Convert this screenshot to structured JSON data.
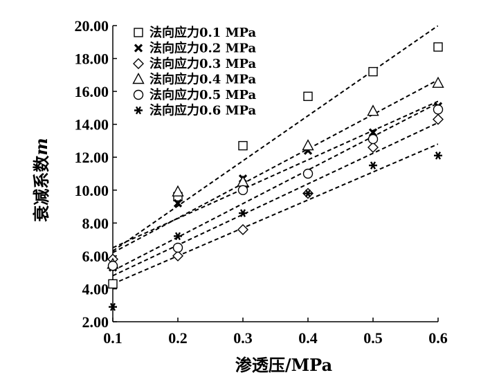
{
  "chart_data": {
    "type": "scatter",
    "xlabel": "渗透压/MPa",
    "ylabel_main": "衰减系数",
    "ylabel_var": "m",
    "xlim": [
      0.1,
      0.6
    ],
    "ylim": [
      2,
      20
    ],
    "xticks": [
      "0.1",
      "0.2",
      "0.3",
      "0.4",
      "0.5",
      "0.6"
    ],
    "yticks": [
      "2.00",
      "4.00",
      "6.00",
      "8.00",
      "10.00",
      "12.00",
      "14.00",
      "16.00",
      "18.00",
      "20.00"
    ],
    "grid": false,
    "legend_position": "top-left",
    "x": [
      0.1,
      0.2,
      0.3,
      0.4,
      0.5,
      0.6
    ],
    "series": [
      {
        "name": "法向应力0.1 MPa",
        "marker": "square",
        "values": [
          4.3,
          9.6,
          12.7,
          15.7,
          17.2,
          18.7
        ],
        "fit": [
          0.1,
          6.3,
          0.6,
          20.0
        ]
      },
      {
        "name": "法向应力0.2 MPa",
        "marker": "x",
        "values": [
          5.3,
          9.2,
          10.7,
          12.4,
          13.5,
          15.1
        ],
        "fit": [
          0.1,
          6.5,
          0.6,
          15.4
        ]
      },
      {
        "name": "法向应力0.3 MPa",
        "marker": "diamond",
        "values": [
          5.8,
          6.0,
          7.6,
          9.8,
          12.6,
          14.3
        ],
        "fit": [
          0.1,
          4.8,
          0.6,
          14.1
        ]
      },
      {
        "name": "法向应力0.4 MPa",
        "marker": "triangle",
        "values": [
          5.5,
          9.9,
          10.5,
          12.7,
          14.8,
          16.5
        ],
        "fit": [
          0.1,
          6.2,
          0.6,
          16.7
        ]
      },
      {
        "name": "法向应力0.5 MPa",
        "marker": "circle",
        "values": [
          5.4,
          6.5,
          10.0,
          11.0,
          13.1,
          14.9
        ],
        "fit": [
          0.1,
          5.1,
          0.6,
          15.3
        ]
      },
      {
        "name": "法向应力0.6 MPa",
        "marker": "asterisk",
        "values": [
          2.9,
          7.2,
          8.6,
          9.8,
          11.5,
          12.1
        ],
        "fit": [
          0.1,
          4.3,
          0.6,
          12.8
        ]
      }
    ]
  }
}
